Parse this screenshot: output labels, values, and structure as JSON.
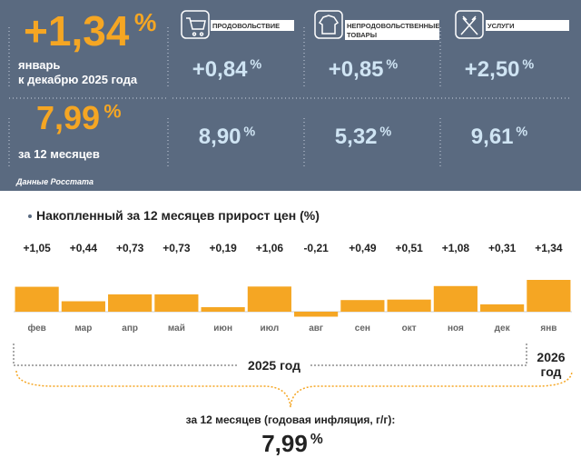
{
  "panel": {
    "main": {
      "value": "+1,34",
      "unit": "%",
      "caption": [
        "январь",
        "к декабрю 2025 года"
      ]
    },
    "annual": {
      "value": "7,99",
      "unit": "%",
      "caption": "за 12 месяцев"
    },
    "columns": [
      {
        "label": [
          "ПРОДОВОЛЬСТВИЕ"
        ],
        "month": "+0,84",
        "year": "8,90",
        "unit": "%"
      },
      {
        "label": [
          "НЕПРОДОВОЛЬСТВЕННЫЕ",
          "ТОВАРЫ"
        ],
        "month": "+0,85",
        "year": "5,32",
        "unit": "%"
      },
      {
        "label": [
          "УСЛУГИ"
        ],
        "month": "+2,50",
        "year": "9,61",
        "unit": "%"
      }
    ],
    "source": "Данные Росстата"
  },
  "chart_data": {
    "type": "bar",
    "title": "Накопленный за 12 месяцев прирост цен (%)",
    "categories": [
      "фев",
      "мар",
      "апр",
      "май",
      "июн",
      "июл",
      "авг",
      "сен",
      "окт",
      "ноя",
      "дек",
      "янв"
    ],
    "values": [
      1.05,
      0.44,
      0.73,
      0.73,
      0.19,
      1.06,
      -0.21,
      0.49,
      0.51,
      1.08,
      0.31,
      1.34
    ],
    "value_labels": [
      "+1,05",
      "+0,44",
      "+0,73",
      "+0,73",
      "+0,19",
      "+1,06",
      "-0,21",
      "+0,49",
      "+0,51",
      "+1,08",
      "+0,31",
      "+1,34"
    ],
    "color": "#f5a623"
  },
  "footer": {
    "year_2025": "2025 год",
    "year_2026": [
      "2026",
      "год"
    ],
    "caption": "за 12 месяцев (годовая инфляция, г/г):",
    "value": "7,99",
    "unit": "%"
  }
}
